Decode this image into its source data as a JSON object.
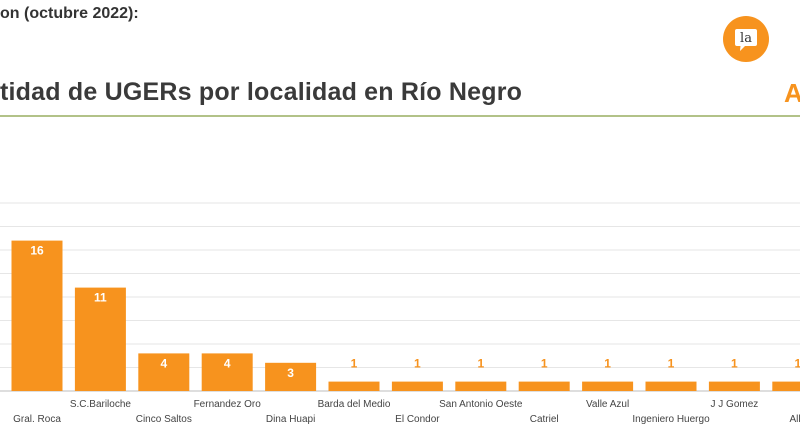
{
  "header": {
    "intro_text": "on (octubre 2022):",
    "brand_letter": "A",
    "logo": {
      "icon": "la-logo-badge",
      "text": "la",
      "color": "#f7931e"
    }
  },
  "chart_data": {
    "type": "bar",
    "title": "tidad de UGERs por localidad en Río Negro",
    "xlabel": "",
    "ylabel": "",
    "ylim": [
      0,
      22
    ],
    "grid": true,
    "bar_color": "#f7931e",
    "label_color": "#ffffff",
    "categories": [
      "Gral. Roca",
      "S.C.Bariloche",
      "Cinco Saltos",
      "Fernandez Oro",
      "Dina Huapi",
      "Barda del Medio",
      "El Condor",
      "San Antonio Oeste",
      "Catriel",
      "Valle Azul",
      "Ingeniero Huergo",
      "J J Gomez",
      "Alle"
    ],
    "values": [
      16,
      11,
      4,
      4,
      3,
      1,
      1,
      1,
      1,
      1,
      1,
      1,
      1
    ]
  }
}
